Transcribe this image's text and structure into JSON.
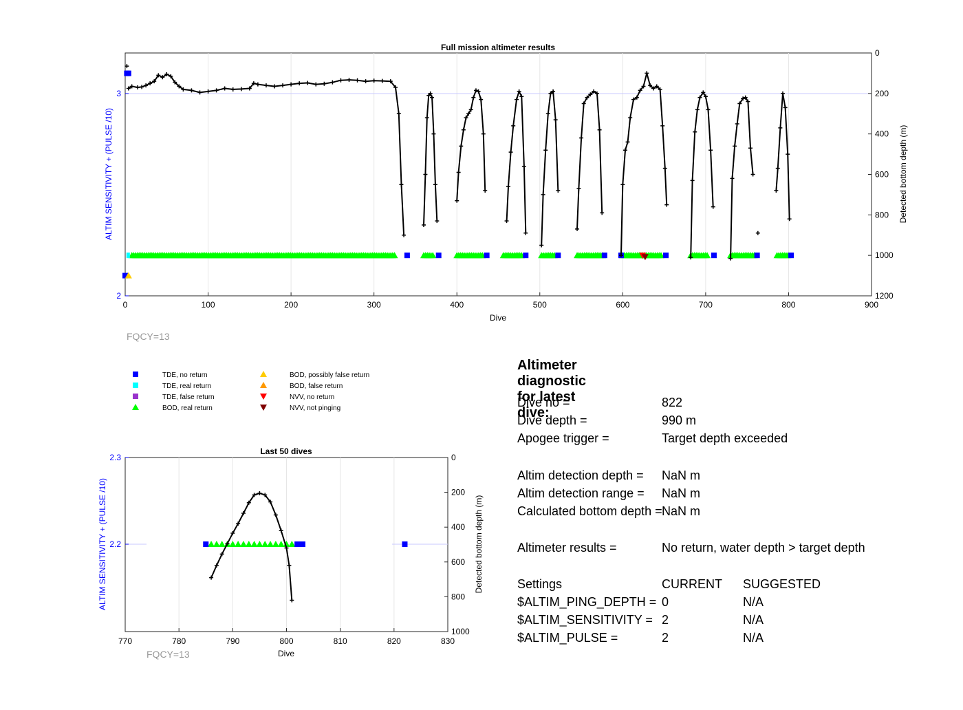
{
  "colors": {
    "left_axis": "#0000ff",
    "tde_no_return": "#0000ff",
    "tde_real_return": "#00ffff",
    "tde_false_return": "#9933cc",
    "bod_real_return": "#00ff00",
    "bod_possibly_false": "#ffcc00",
    "bod_false": "#ff9900",
    "nvv_no_return": "#ff0000",
    "nvv_not_pinging": "#800000",
    "depth_line": "#000000",
    "fqcy": "#999999"
  },
  "main_chart": {
    "title": "Full mission altimeter results",
    "xlabel": "Dive",
    "ylabel_left": "ALTIM SENSITIVITY + (PULSE /10)",
    "ylabel_right": "Detected bottom depth (m)",
    "note": "FQCY=13",
    "x_ticks": [
      "0",
      "100",
      "200",
      "300",
      "400",
      "500",
      "600",
      "700",
      "800",
      "900"
    ],
    "y_left_ticks": [
      "2",
      "3"
    ],
    "y_right_ticks": [
      "0",
      "200",
      "400",
      "600",
      "800",
      "1000",
      "1200"
    ]
  },
  "last_chart": {
    "title": "Last 50 dives",
    "xlabel": "Dive",
    "ylabel_left": "ALTIM SENSITIVITY + (PULSE /10)",
    "ylabel_right": "Detected bottom depth (m)",
    "note": "FQCY=13",
    "x_ticks": [
      "770",
      "780",
      "790",
      "800",
      "810",
      "820",
      "830"
    ],
    "y_left_ticks": [
      "2.2",
      "2.3"
    ],
    "y_right_ticks": [
      "0",
      "200",
      "400",
      "600",
      "800",
      "1000"
    ]
  },
  "legend": [
    {
      "label": "TDE, no return",
      "marker": "square",
      "color": "#0000ff"
    },
    {
      "label": "TDE, real return",
      "marker": "square",
      "color": "#00ffff"
    },
    {
      "label": "TDE, false return",
      "marker": "square",
      "color": "#9933cc"
    },
    {
      "label": "BOD, real return",
      "marker": "triangle-up",
      "color": "#00ff00"
    },
    {
      "label": "BOD, possibly false return",
      "marker": "triangle-up",
      "color": "#ffcc00"
    },
    {
      "label": "BOD, false return",
      "marker": "triangle-up",
      "color": "#ff9900"
    },
    {
      "label": "NVV, no return",
      "marker": "triangle-down",
      "color": "#ff0000"
    },
    {
      "label": "NVV, not pinging",
      "marker": "triangle-down",
      "color": "#800000"
    }
  ],
  "diagnostic": {
    "title": "Altimeter diagnostic for latest dive:",
    "dive_no_label": "Dive no =",
    "dive_no_value": "822",
    "dive_depth_label": "Dive depth =",
    "dive_depth_value": "990 m",
    "apogee_label": "Apogee trigger =",
    "apogee_value": "Target depth exceeded",
    "altim_det_depth_label": "Altim detection depth =",
    "altim_det_depth_value": "NaN m",
    "altim_det_range_label": "Altim detection range =",
    "altim_det_range_value": "NaN m",
    "calc_bottom_label": "Calculated bottom depth =",
    "calc_bottom_value": "NaN m",
    "results_label": "Altimeter results =",
    "results_value": "No return, water depth > target depth",
    "settings_label": "Settings",
    "current_label": "CURRENT",
    "suggested_label": "SUGGESTED",
    "ping_depth_label": "$ALTIM_PING_DEPTH =",
    "ping_depth_current": "0",
    "ping_depth_suggested": "N/A",
    "sensitivity_label": "$ALTIM_SENSITIVITY =",
    "sensitivity_current": "2",
    "sensitivity_suggested": "N/A",
    "pulse_label": "$ALTIM_PULSE =",
    "pulse_current": "2",
    "pulse_suggested": "N/A"
  },
  "chart_data": [
    {
      "type": "line",
      "title": "Full mission altimeter results",
      "xlabel": "Dive",
      "ylabel": "Detected bottom depth (m)",
      "xlim": [
        0,
        900
      ],
      "ylim_left": [
        2,
        3.2
      ],
      "ylim_right": [
        0,
        1200
      ],
      "right_axis_reversed": true,
      "grid": true,
      "series": [
        {
          "name": "Detected bottom depth (m)",
          "axis": "right",
          "points": [
            [
              4,
              175
            ],
            [
              8,
              165
            ],
            [
              15,
              170
            ],
            [
              20,
              168
            ],
            [
              25,
              160
            ],
            [
              30,
              150
            ],
            [
              35,
              140
            ],
            [
              40,
              110
            ],
            [
              45,
              120
            ],
            [
              50,
              105
            ],
            [
              55,
              115
            ],
            [
              60,
              145
            ],
            [
              65,
              165
            ],
            [
              70,
              180
            ],
            [
              80,
              185
            ],
            [
              90,
              195
            ],
            [
              100,
              190
            ],
            [
              110,
              185
            ],
            [
              120,
              175
            ],
            [
              130,
              180
            ],
            [
              140,
              178
            ],
            [
              150,
              175
            ],
            [
              155,
              150
            ],
            [
              160,
              155
            ],
            [
              170,
              160
            ],
            [
              180,
              165
            ],
            [
              190,
              160
            ],
            [
              200,
              155
            ],
            [
              210,
              150
            ],
            [
              220,
              148
            ],
            [
              230,
              155
            ],
            [
              240,
              152
            ],
            [
              250,
              145
            ],
            [
              260,
              135
            ],
            [
              270,
              133
            ],
            [
              280,
              135
            ],
            [
              290,
              140
            ],
            [
              300,
              137
            ],
            [
              310,
              138
            ],
            [
              320,
              140
            ],
            [
              326,
              170
            ],
            [
              330,
              300
            ],
            [
              333,
              650
            ],
            [
              336,
              900
            ],
            [
              360,
              850
            ],
            [
              362,
              600
            ],
            [
              364,
              320
            ],
            [
              366,
              210
            ],
            [
              368,
              200
            ],
            [
              370,
              220
            ],
            [
              372,
              400
            ],
            [
              374,
              650
            ],
            [
              376,
              830
            ],
            [
              400,
              730
            ],
            [
              402,
              590
            ],
            [
              405,
              460
            ],
            [
              408,
              380
            ],
            [
              411,
              320
            ],
            [
              414,
              300
            ],
            [
              417,
              280
            ],
            [
              420,
              220
            ],
            [
              423,
              185
            ],
            [
              426,
              190
            ],
            [
              429,
              230
            ],
            [
              432,
              400
            ],
            [
              434,
              680
            ],
            [
              460,
              830
            ],
            [
              462,
              660
            ],
            [
              465,
              490
            ],
            [
              468,
              360
            ],
            [
              472,
              230
            ],
            [
              475,
              190
            ],
            [
              478,
              215
            ],
            [
              481,
              560
            ],
            [
              483,
              890
            ],
            [
              502,
              950
            ],
            [
              504,
              700
            ],
            [
              507,
              480
            ],
            [
              510,
              300
            ],
            [
              513,
              200
            ],
            [
              516,
              190
            ],
            [
              519,
              330
            ],
            [
              522,
              680
            ],
            [
              545,
              870
            ],
            [
              547,
              670
            ],
            [
              550,
              420
            ],
            [
              553,
              250
            ],
            [
              557,
              220
            ],
            [
              561,
              205
            ],
            [
              565,
              190
            ],
            [
              569,
              200
            ],
            [
              572,
              380
            ],
            [
              575,
              790
            ],
            [
              598,
              1000
            ],
            [
              600,
              650
            ],
            [
              603,
              480
            ],
            [
              606,
              440
            ],
            [
              609,
              320
            ],
            [
              613,
              230
            ],
            [
              617,
              220
            ],
            [
              621,
              185
            ],
            [
              625,
              165
            ],
            [
              629,
              100
            ],
            [
              633,
              160
            ],
            [
              637,
              175
            ],
            [
              641,
              165
            ],
            [
              645,
              180
            ],
            [
              648,
              360
            ],
            [
              651,
              570
            ],
            [
              653,
              750
            ],
            [
              682,
              1010
            ],
            [
              684,
              630
            ],
            [
              687,
              390
            ],
            [
              690,
              280
            ],
            [
              693,
              220
            ],
            [
              697,
              195
            ],
            [
              700,
              215
            ],
            [
              703,
              280
            ],
            [
              706,
              480
            ],
            [
              709,
              760
            ],
            [
              730,
              1015
            ],
            [
              732,
              620
            ],
            [
              735,
              460
            ],
            [
              738,
              350
            ],
            [
              741,
              250
            ],
            [
              745,
              225
            ],
            [
              748,
              220
            ],
            [
              751,
              240
            ],
            [
              754,
              470
            ],
            [
              757,
              600
            ],
            [
              785,
              680
            ],
            [
              787,
              570
            ],
            [
              790,
              370
            ],
            [
              793,
              200
            ],
            [
              796,
              270
            ],
            [
              799,
              500
            ],
            [
              801,
              820
            ]
          ]
        },
        {
          "name": "BOD, real return",
          "axis": "left",
          "y_constant": 2.2,
          "x_ranges": [
            [
              8,
              326
            ],
            [
              360,
              372
            ],
            [
              400,
              432
            ],
            [
              456,
              480
            ],
            [
              502,
              518
            ],
            [
              545,
              576
            ],
            [
              600,
              648
            ],
            [
              682,
              704
            ],
            [
              730,
              760
            ],
            [
              786,
              801
            ]
          ]
        },
        {
          "name": "TDE, no return",
          "axis": "left",
          "points": [
            [
              2,
              3.1
            ],
            [
              4,
              3.1
            ],
            [
              0,
              2.1
            ],
            [
              340,
              2.2
            ],
            [
              378,
              2.2
            ],
            [
              436,
              2.2
            ],
            [
              483,
              2.2
            ],
            [
              522,
              2.2
            ],
            [
              578,
              2.2
            ],
            [
              598,
              2.2
            ],
            [
              652,
              2.2
            ],
            [
              710,
              2.2
            ],
            [
              762,
              2.2
            ],
            [
              803,
              2.2
            ]
          ]
        }
      ]
    },
    {
      "type": "line",
      "title": "Last 50 dives",
      "xlabel": "Dive",
      "ylabel": "Detected bottom depth (m)",
      "xlim": [
        770,
        830
      ],
      "ylim_left": [
        2.1,
        2.3
      ],
      "ylim_right": [
        0,
        1000
      ],
      "right_axis_reversed": true,
      "grid": true,
      "series": [
        {
          "name": "Detected bottom depth (m)",
          "axis": "right",
          "points": [
            [
              786,
              690
            ],
            [
              787,
              620
            ],
            [
              788,
              555
            ],
            [
              789,
              495
            ],
            [
              790,
              435
            ],
            [
              791,
              380
            ],
            [
              792,
              320
            ],
            [
              793,
              260
            ],
            [
              794,
              215
            ],
            [
              795,
              205
            ],
            [
              796,
              215
            ],
            [
              797,
              255
            ],
            [
              798,
              330
            ],
            [
              799,
              420
            ],
            [
              800,
              520
            ],
            [
              800.5,
              620
            ],
            [
              801,
              820
            ]
          ]
        },
        {
          "name": "BOD, real return",
          "axis": "left",
          "y_constant": 2.2,
          "x_values": [
            786,
            787,
            788,
            789,
            790,
            791,
            792,
            793,
            794,
            795,
            796,
            797,
            798,
            799,
            800,
            801
          ]
        },
        {
          "name": "TDE, no return",
          "axis": "left",
          "y_constant": 2.2,
          "x_values": [
            785,
            802,
            803,
            822
          ]
        }
      ]
    }
  ]
}
